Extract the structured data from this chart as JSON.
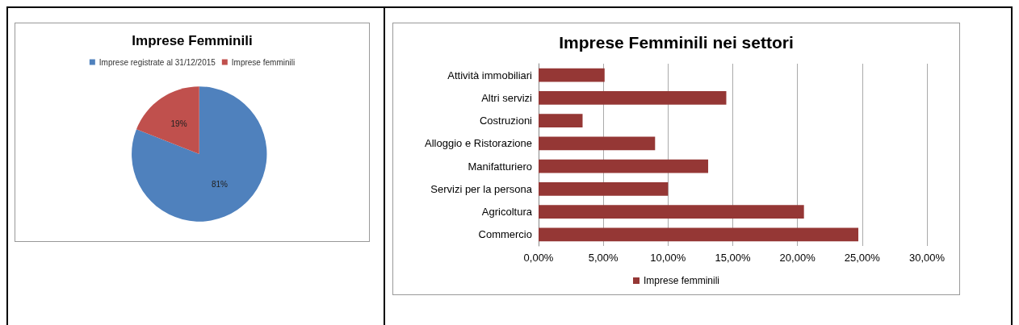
{
  "chart_data": [
    {
      "type": "pie",
      "title": "Imprese Femminili",
      "categories": [
        "Imprese registrate al 31/12/2015",
        "Imprese femminili"
      ],
      "values": [
        81,
        19
      ],
      "colors": [
        "#4f81bd",
        "#c0504d"
      ],
      "value_labels": [
        "81%",
        "19%"
      ],
      "legend": "top"
    },
    {
      "type": "bar",
      "orientation": "horizontal",
      "title": "Imprese Femminili nei settori",
      "categories": [
        "Attività immobiliari",
        "Altri servizi",
        "Costruzioni",
        "Alloggio e Ristorazione",
        "Manifatturiero",
        "Servizi per la persona",
        "Agricoltura",
        "Commercio"
      ],
      "series": [
        {
          "name": "Imprese femminili",
          "color": "#953735",
          "values": [
            5.1,
            14.5,
            3.4,
            9.0,
            13.1,
            10.0,
            20.5,
            24.7
          ]
        }
      ],
      "xlim": [
        0,
        30
      ],
      "xticks": [
        {
          "value": 0,
          "label": "0,00%"
        },
        {
          "value": 5,
          "label": "5,00%"
        },
        {
          "value": 10,
          "label": "10,00%"
        },
        {
          "value": 15,
          "label": "15,00%"
        },
        {
          "value": 20,
          "label": "20,00%"
        },
        {
          "value": 25,
          "label": "25,00%"
        },
        {
          "value": 30,
          "label": "30,00%"
        }
      ],
      "grid": "x",
      "legend": "bottom"
    }
  ]
}
